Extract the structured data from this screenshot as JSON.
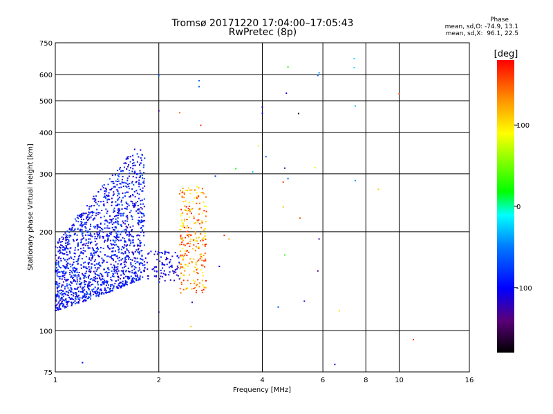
{
  "chart_data": {
    "type": "scatter",
    "title": "Tromsø 20171220 17:04:00–17:05:43",
    "subtitle": "RwPretec (8p)",
    "xlabel": "Frequency [MHz]",
    "ylabel": "Stationary phase Virtual Height [km]",
    "x_scale": "log",
    "y_scale": "log",
    "xlim": [
      1,
      16
    ],
    "ylim": [
      75,
      750
    ],
    "x_ticks": [
      1,
      2,
      4,
      6,
      8,
      10,
      16
    ],
    "y_ticks": [
      75,
      100,
      200,
      300,
      400,
      500,
      600,
      750
    ],
    "grid": true,
    "stats": {
      "title": "Phase",
      "o_line": "mean, sd,O: -74.9, 13.1",
      "x_line": "mean, sd,X:  96.1, 22.5"
    },
    "colorbar": {
      "label": "[deg]",
      "ticks": [
        100,
        0,
        -100
      ],
      "range": [
        -180,
        180
      ]
    },
    "clusters": [
      {
        "note": "main O-trace cloud",
        "freq_range": [
          1.0,
          1.82
        ],
        "height_range": [
          115,
          360
        ],
        "phase_mean": -95,
        "count": 1600
      },
      {
        "note": "X-trace cloud",
        "freq_range": [
          2.3,
          2.75
        ],
        "height_range": [
          130,
          275
        ],
        "phase_mean": 130,
        "count": 260
      },
      {
        "note": "connector band",
        "freq_range": [
          1.82,
          2.3
        ],
        "height_range": [
          140,
          175
        ],
        "phase_mean": -110,
        "count": 90
      }
    ],
    "isolated_points": [
      {
        "x": 1.2,
        "y": 80,
        "phase": -100
      },
      {
        "x": 2.0,
        "y": 597,
        "phase": -60
      },
      {
        "x": 2.0,
        "y": 466,
        "phase": -130
      },
      {
        "x": 2.0,
        "y": 114,
        "phase": -130
      },
      {
        "x": 2.3,
        "y": 460,
        "phase": 150
      },
      {
        "x": 2.62,
        "y": 575,
        "phase": -60
      },
      {
        "x": 2.62,
        "y": 552,
        "phase": -60
      },
      {
        "x": 2.65,
        "y": 421,
        "phase": 170
      },
      {
        "x": 2.5,
        "y": 122,
        "phase": -120
      },
      {
        "x": 2.48,
        "y": 103,
        "phase": 110
      },
      {
        "x": 2.92,
        "y": 295,
        "phase": -80
      },
      {
        "x": 3.1,
        "y": 195,
        "phase": 170
      },
      {
        "x": 3.2,
        "y": 190,
        "phase": 120
      },
      {
        "x": 3.0,
        "y": 157,
        "phase": -110
      },
      {
        "x": 3.35,
        "y": 311,
        "phase": 20
      },
      {
        "x": 3.75,
        "y": 304,
        "phase": -30
      },
      {
        "x": 3.9,
        "y": 365,
        "phase": 80
      },
      {
        "x": 4.0,
        "y": 478,
        "phase": -100
      },
      {
        "x": 4.0,
        "y": 458,
        "phase": -100
      },
      {
        "x": 4.1,
        "y": 338,
        "phase": -60
      },
      {
        "x": 4.45,
        "y": 118,
        "phase": -60
      },
      {
        "x": 4.6,
        "y": 283,
        "phase": 160
      },
      {
        "x": 4.6,
        "y": 238,
        "phase": 110
      },
      {
        "x": 4.65,
        "y": 312,
        "phase": -130
      },
      {
        "x": 4.7,
        "y": 527,
        "phase": -110
      },
      {
        "x": 4.75,
        "y": 633,
        "phase": 30
      },
      {
        "x": 4.75,
        "y": 290,
        "phase": -60
      },
      {
        "x": 4.65,
        "y": 170,
        "phase": 30
      },
      {
        "x": 5.1,
        "y": 457,
        "phase": -170
      },
      {
        "x": 5.15,
        "y": 220,
        "phase": 150
      },
      {
        "x": 5.3,
        "y": 123,
        "phase": -110
      },
      {
        "x": 5.7,
        "y": 313,
        "phase": 80
      },
      {
        "x": 5.8,
        "y": 597,
        "phase": -60
      },
      {
        "x": 5.85,
        "y": 608,
        "phase": -40
      },
      {
        "x": 5.85,
        "y": 190,
        "phase": -130
      },
      {
        "x": 5.8,
        "y": 152,
        "phase": -150
      },
      {
        "x": 6.5,
        "y": 79,
        "phase": -120
      },
      {
        "x": 6.7,
        "y": 115,
        "phase": 100
      },
      {
        "x": 7.4,
        "y": 671,
        "phase": -20
      },
      {
        "x": 7.4,
        "y": 630,
        "phase": -20
      },
      {
        "x": 7.45,
        "y": 482,
        "phase": -30
      },
      {
        "x": 7.45,
        "y": 286,
        "phase": -40
      },
      {
        "x": 8.7,
        "y": 269,
        "phase": 110
      },
      {
        "x": 10.0,
        "y": 525,
        "phase": 160
      },
      {
        "x": 11.0,
        "y": 94,
        "phase": 170
      }
    ]
  }
}
